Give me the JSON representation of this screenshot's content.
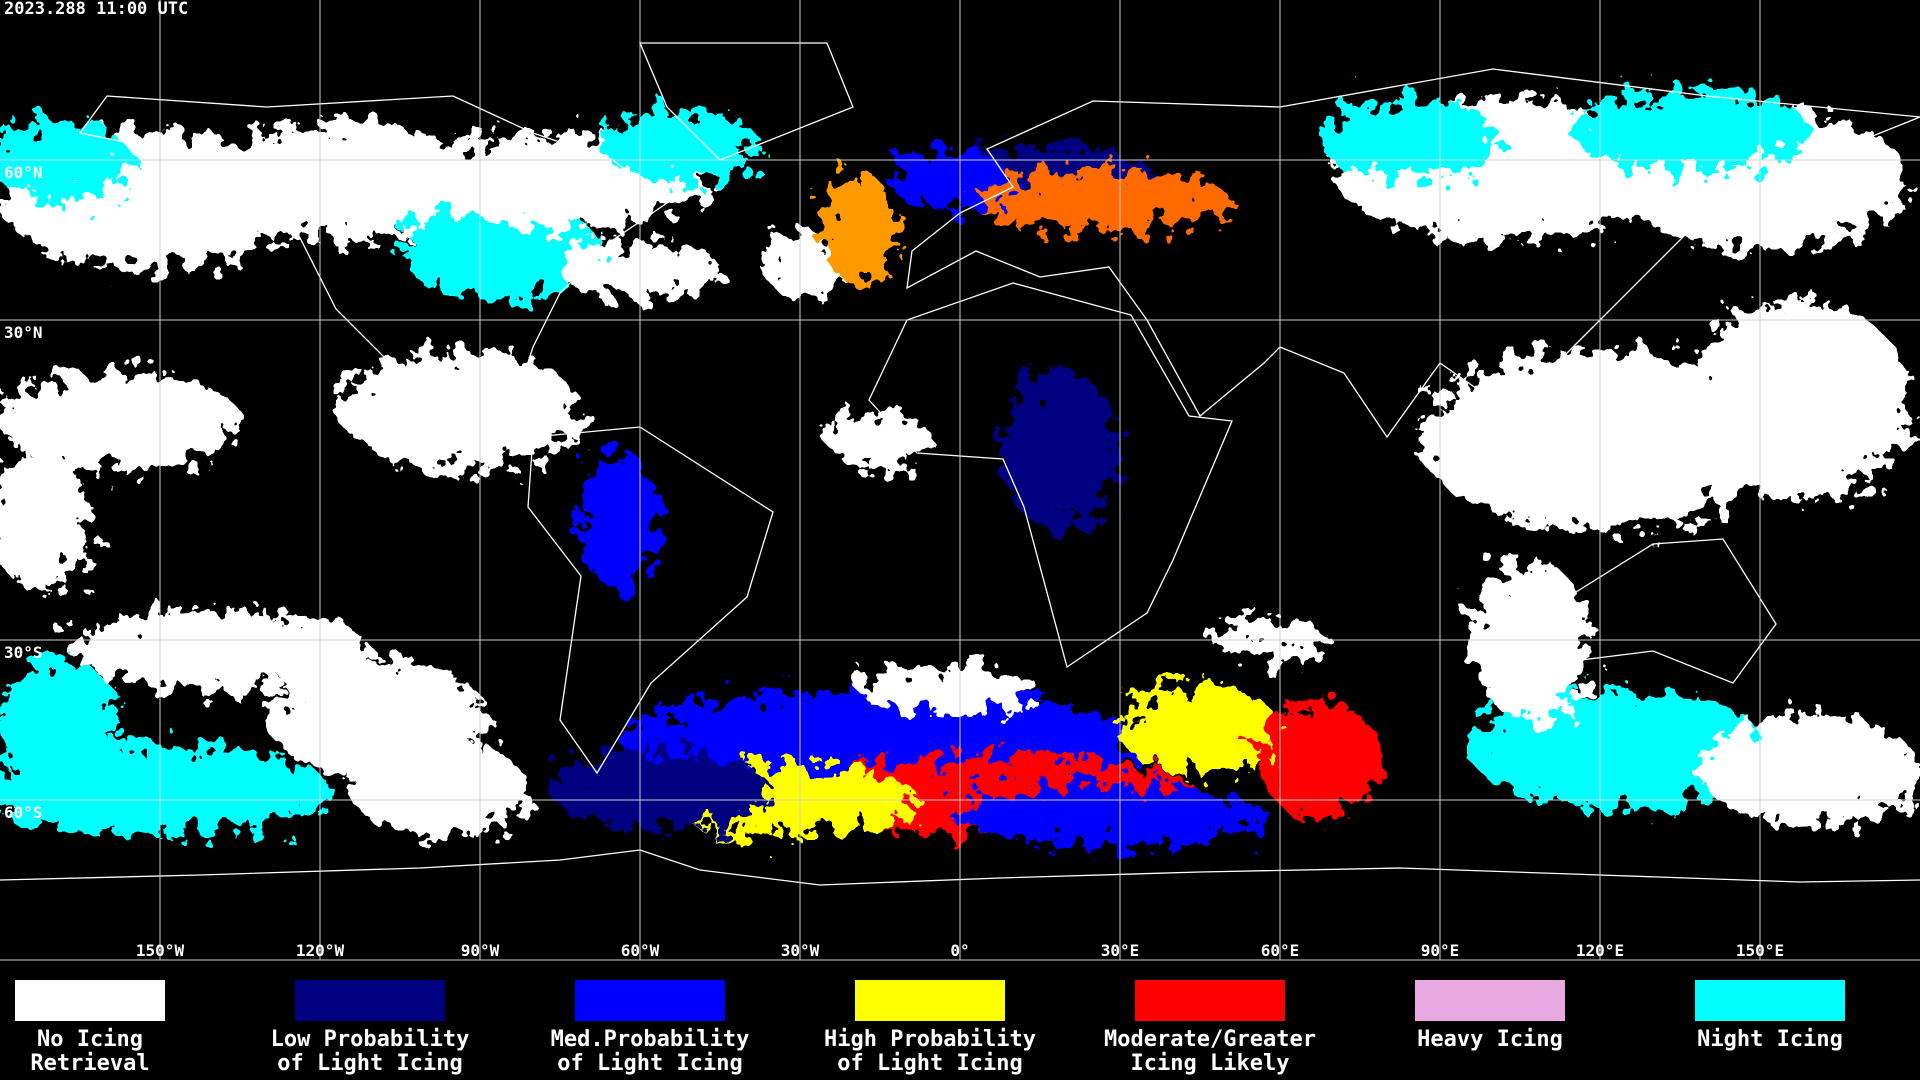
{
  "timestamp": "2023.288 11:00 UTC",
  "latitude_lines": [
    {
      "value": 60,
      "label": "60°N"
    },
    {
      "value": 30,
      "label": "30°N"
    },
    {
      "value": -30,
      "label": "30°S"
    },
    {
      "value": -60,
      "label": "60°S"
    }
  ],
  "longitude_lines": [
    {
      "value": -150,
      "label": "150°W"
    },
    {
      "value": -120,
      "label": "120°W"
    },
    {
      "value": -90,
      "label": "90°W"
    },
    {
      "value": -60,
      "label": "60°W"
    },
    {
      "value": -30,
      "label": "30°W"
    },
    {
      "value": 0,
      "label": "0°"
    },
    {
      "value": 30,
      "label": "30°E"
    },
    {
      "value": 60,
      "label": "60°E"
    },
    {
      "value": 90,
      "label": "90°E"
    },
    {
      "value": 120,
      "label": "120°E"
    },
    {
      "value": 150,
      "label": "150°E"
    }
  ],
  "legend": [
    {
      "color": "#ffffff",
      "label": [
        "No Icing",
        "Retrieval"
      ]
    },
    {
      "color": "#000080",
      "label": [
        "Low Probability",
        "of Light Icing"
      ]
    },
    {
      "color": "#0000ff",
      "label": [
        "Med.Probability",
        "of Light Icing"
      ]
    },
    {
      "color": "#ffff00",
      "label": [
        "High Probability",
        "of Light Icing"
      ]
    },
    {
      "color": "#ff0000",
      "label": [
        "Moderate/Greater",
        "Icing Likely"
      ]
    },
    {
      "color": "#e8a8e0",
      "label": [
        "Heavy Icing"
      ]
    },
    {
      "color": "#00ffff",
      "label": [
        "Night Icing"
      ]
    }
  ]
}
